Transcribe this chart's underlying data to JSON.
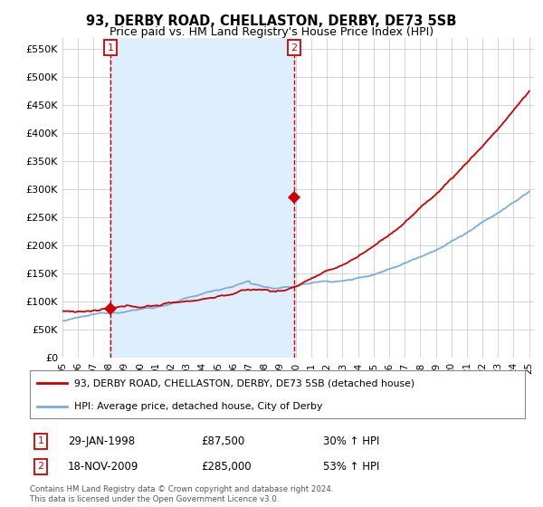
{
  "title": "93, DERBY ROAD, CHELLASTON, DERBY, DE73 5SB",
  "subtitle": "Price paid vs. HM Land Registry's House Price Index (HPI)",
  "ylabel_ticks": [
    "£0",
    "£50K",
    "£100K",
    "£150K",
    "£200K",
    "£250K",
    "£300K",
    "£350K",
    "£400K",
    "£450K",
    "£500K",
    "£550K"
  ],
  "ylabel_values": [
    0,
    50000,
    100000,
    150000,
    200000,
    250000,
    300000,
    350000,
    400000,
    450000,
    500000,
    550000
  ],
  "ylim": [
    0,
    570000
  ],
  "legend_line1": "93, DERBY ROAD, CHELLASTON, DERBY, DE73 5SB (detached house)",
  "legend_line2": "HPI: Average price, detached house, City of Derby",
  "point1_date": "29-JAN-1998",
  "point1_price": "£87,500",
  "point1_pct": "30% ↑ HPI",
  "point1_year": 1998.08,
  "point1_value": 87500,
  "point2_date": "18-NOV-2009",
  "point2_price": "£285,000",
  "point2_pct": "53% ↑ HPI",
  "point2_year": 2009.88,
  "point2_value": 285000,
  "footnote": "Contains HM Land Registry data © Crown copyright and database right 2024.\nThis data is licensed under the Open Government Licence v3.0.",
  "line_color_red": "#cc0000",
  "line_color_blue": "#7aaddc",
  "shade_color": "#ddeeff",
  "vline_color": "#cc0000",
  "bg_color": "#ffffff",
  "grid_color": "#cccccc"
}
